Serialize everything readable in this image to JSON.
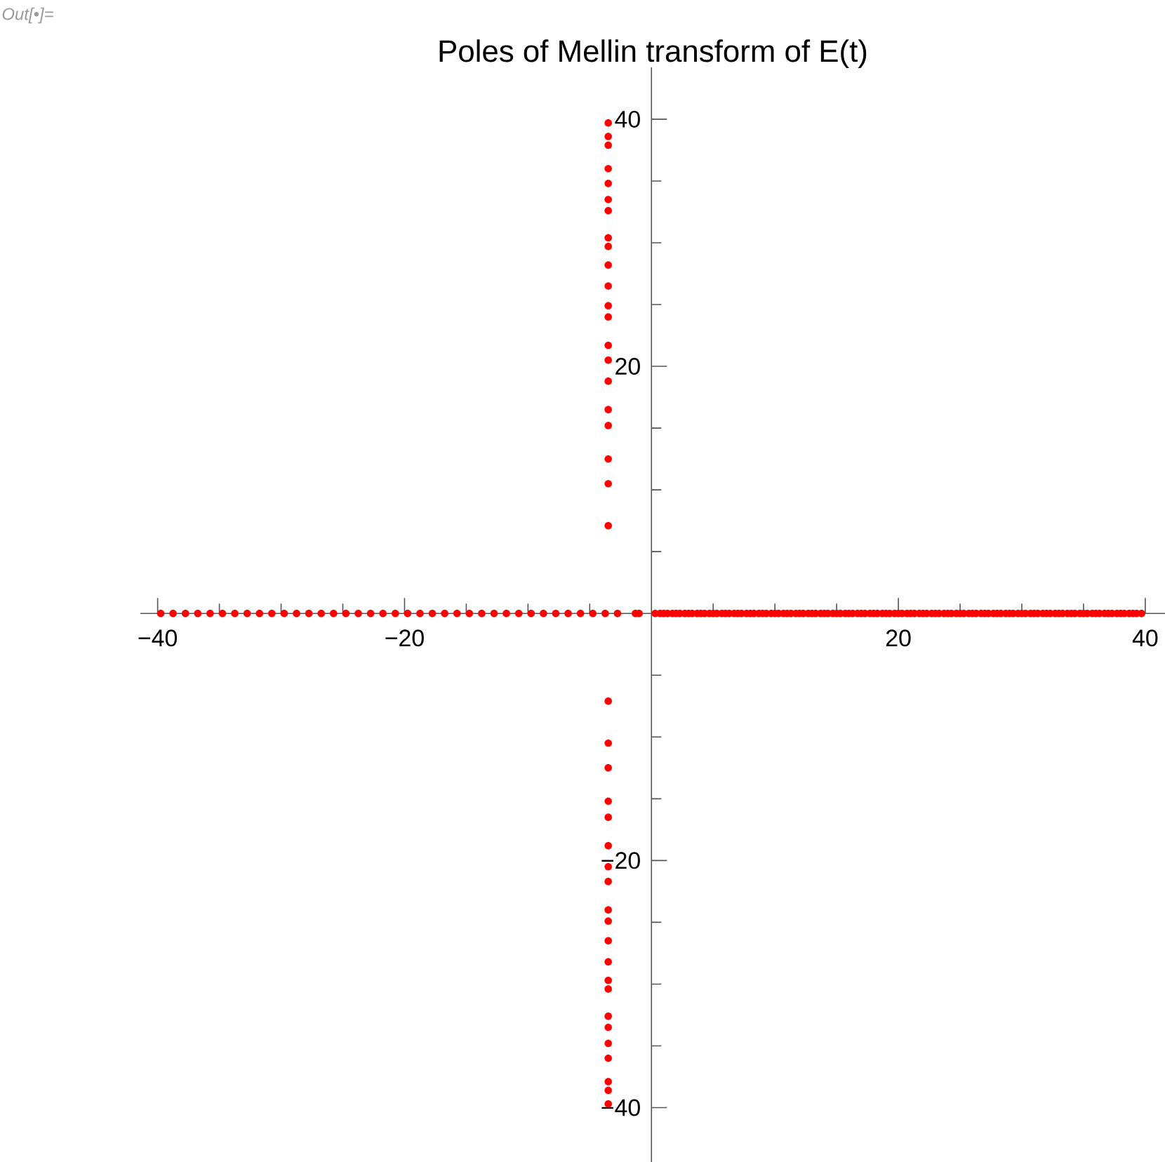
{
  "chart_data": {
    "type": "scatter",
    "title": "Poles of Mellin transform of E(t)",
    "annotations": [
      "Out[•]="
    ],
    "series": [
      {
        "color": "#ff0000",
        "x": [
          -3.5,
          -3.5,
          -3.5,
          -3.5,
          -3.5,
          -3.5,
          -3.5,
          -3.5,
          -3.5,
          -3.5,
          -3.5,
          -3.5,
          -3.5,
          -3.5,
          -3.5,
          -3.5,
          -3.5,
          -3.5,
          -3.5,
          -3.5,
          -3.5,
          -3.5,
          -3.5,
          -3.5,
          -3.5,
          -3.5,
          -3.5,
          -3.5,
          -3.5,
          -3.5,
          -3.5,
          -3.5,
          -3.5,
          -3.5,
          -3.5,
          -3.5,
          -3.5,
          -3.5,
          -3.5,
          -3.5,
          -3.5,
          -3.5
        ],
        "values": [
          7.1,
          10.5,
          12.5,
          15.2,
          16.5,
          18.8,
          20.5,
          21.7,
          24.0,
          24.9,
          26.5,
          28.2,
          29.7,
          30.4,
          32.6,
          33.5,
          34.8,
          36.0,
          37.9,
          38.6,
          39.7,
          -7.1,
          -10.5,
          -12.5,
          -15.2,
          -16.5,
          -18.8,
          -20.5,
          -21.7,
          -24.0,
          -24.9,
          -26.5,
          -28.2,
          -29.7,
          -30.4,
          -32.6,
          -33.5,
          -34.8,
          -36.0,
          -37.9,
          -38.6,
          -39.7
        ]
      },
      {
        "color": "#ff0000",
        "x": [
          -39.75,
          -38.75,
          -37.75,
          -36.75,
          -35.75,
          -34.75,
          -33.75,
          -32.75,
          -31.75,
          -30.75,
          -29.75,
          -28.75,
          -27.75,
          -26.75,
          -25.75,
          -24.75,
          -23.75,
          -22.75,
          -21.75,
          -20.75,
          -19.75,
          -18.75,
          -17.75,
          -16.75,
          -15.75,
          -14.75,
          -13.75,
          -12.75,
          -11.75,
          -10.75,
          -9.75,
          -8.75,
          -7.75,
          -6.75,
          -5.75,
          -4.75,
          -3.75,
          -2.75,
          -1.3,
          -1.0
        ],
        "values": [
          0,
          0,
          0,
          0,
          0,
          0,
          0,
          0,
          0,
          0,
          0,
          0,
          0,
          0,
          0,
          0,
          0,
          0,
          0,
          0,
          0,
          0,
          0,
          0,
          0,
          0,
          0,
          0,
          0,
          0,
          0,
          0,
          0,
          0,
          0,
          0,
          0,
          0,
          0,
          0
        ]
      },
      {
        "color": "#ff0000",
        "x": [
          0.3,
          0.7,
          1,
          1.3,
          1.7,
          2,
          2.3,
          2.7,
          3,
          3.3,
          3.7,
          4,
          4.3,
          4.7,
          5,
          5.3,
          5.7,
          6,
          6.3,
          6.7,
          7,
          7.3,
          7.7,
          8,
          8.3,
          8.7,
          9,
          9.3,
          9.7,
          10,
          10.3,
          10.7,
          11,
          11.3,
          11.7,
          12,
          12.3,
          12.7,
          13,
          13.3,
          13.7,
          14,
          14.3,
          14.7,
          15,
          15.3,
          15.7,
          16,
          16.3,
          16.7,
          17,
          17.3,
          17.7,
          18,
          18.3,
          18.7,
          19,
          19.3,
          19.7,
          20,
          20.3,
          20.7,
          21,
          21.3,
          21.7,
          22,
          22.3,
          22.7,
          23,
          23.3,
          23.7,
          24,
          24.3,
          24.7,
          25,
          25.3,
          25.7,
          26,
          26.3,
          26.7,
          27,
          27.3,
          27.7,
          28,
          28.3,
          28.7,
          29,
          29.3,
          29.7,
          30,
          30.3,
          30.7,
          31,
          31.3,
          31.7,
          32,
          32.3,
          32.7,
          33,
          33.3,
          33.7,
          34,
          34.3,
          34.7,
          35,
          35.3,
          35.7,
          36,
          36.3,
          36.7,
          37,
          37.3,
          37.7,
          38,
          38.3,
          38.7,
          39,
          39.3,
          39.7
        ],
        "values": [
          0,
          0,
          0,
          0,
          0,
          0,
          0,
          0,
          0,
          0,
          0,
          0,
          0,
          0,
          0,
          0,
          0,
          0,
          0,
          0,
          0,
          0,
          0,
          0,
          0,
          0,
          0,
          0,
          0,
          0,
          0,
          0,
          0,
          0,
          0,
          0,
          0,
          0,
          0,
          0,
          0,
          0,
          0,
          0,
          0,
          0,
          0,
          0,
          0,
          0,
          0,
          0,
          0,
          0,
          0,
          0,
          0,
          0,
          0,
          0,
          0,
          0,
          0,
          0,
          0,
          0,
          0,
          0,
          0,
          0,
          0,
          0,
          0,
          0,
          0,
          0,
          0,
          0,
          0,
          0,
          0,
          0,
          0,
          0,
          0,
          0,
          0,
          0,
          0,
          0,
          0,
          0,
          0,
          0,
          0,
          0,
          0,
          0,
          0,
          0,
          0,
          0,
          0,
          0,
          0,
          0,
          0,
          0,
          0,
          0,
          0,
          0,
          0,
          0,
          0,
          0,
          0,
          0,
          0
        ]
      }
    ],
    "marker": "circle",
    "xlim": [
      -41.4,
      41.6
    ],
    "ylim": [
      -44.4,
      44.2
    ],
    "xticks": [
      {
        "value": -40,
        "label": "−40"
      },
      {
        "value": -35,
        "label": null
      },
      {
        "value": -30,
        "label": null
      },
      {
        "value": -25,
        "label": null
      },
      {
        "value": -20,
        "label": "−20"
      },
      {
        "value": -15,
        "label": null
      },
      {
        "value": -10,
        "label": null
      },
      {
        "value": -5,
        "label": null
      },
      {
        "value": 5,
        "label": null
      },
      {
        "value": 10,
        "label": null
      },
      {
        "value": 15,
        "label": null
      },
      20,
      {
        "value": 25,
        "label": null
      },
      {
        "value": 30,
        "label": null
      },
      {
        "value": 35,
        "label": null
      },
      40
    ],
    "yticks": [
      {
        "value": -40,
        "label": "−40"
      },
      {
        "value": -35,
        "label": null
      },
      {
        "value": -30,
        "label": null
      },
      {
        "value": -25,
        "label": null
      },
      {
        "value": -20,
        "label": "−20"
      },
      {
        "value": -15,
        "label": null
      },
      {
        "value": -10,
        "label": null
      },
      {
        "value": -5,
        "label": null
      },
      {
        "value": 5,
        "label": null
      },
      {
        "value": 10,
        "label": null
      },
      {
        "value": 15,
        "label": null
      },
      20,
      {
        "value": 25,
        "label": null
      },
      {
        "value": 30,
        "label": null
      },
      {
        "value": 35,
        "label": null
      },
      40
    ]
  }
}
